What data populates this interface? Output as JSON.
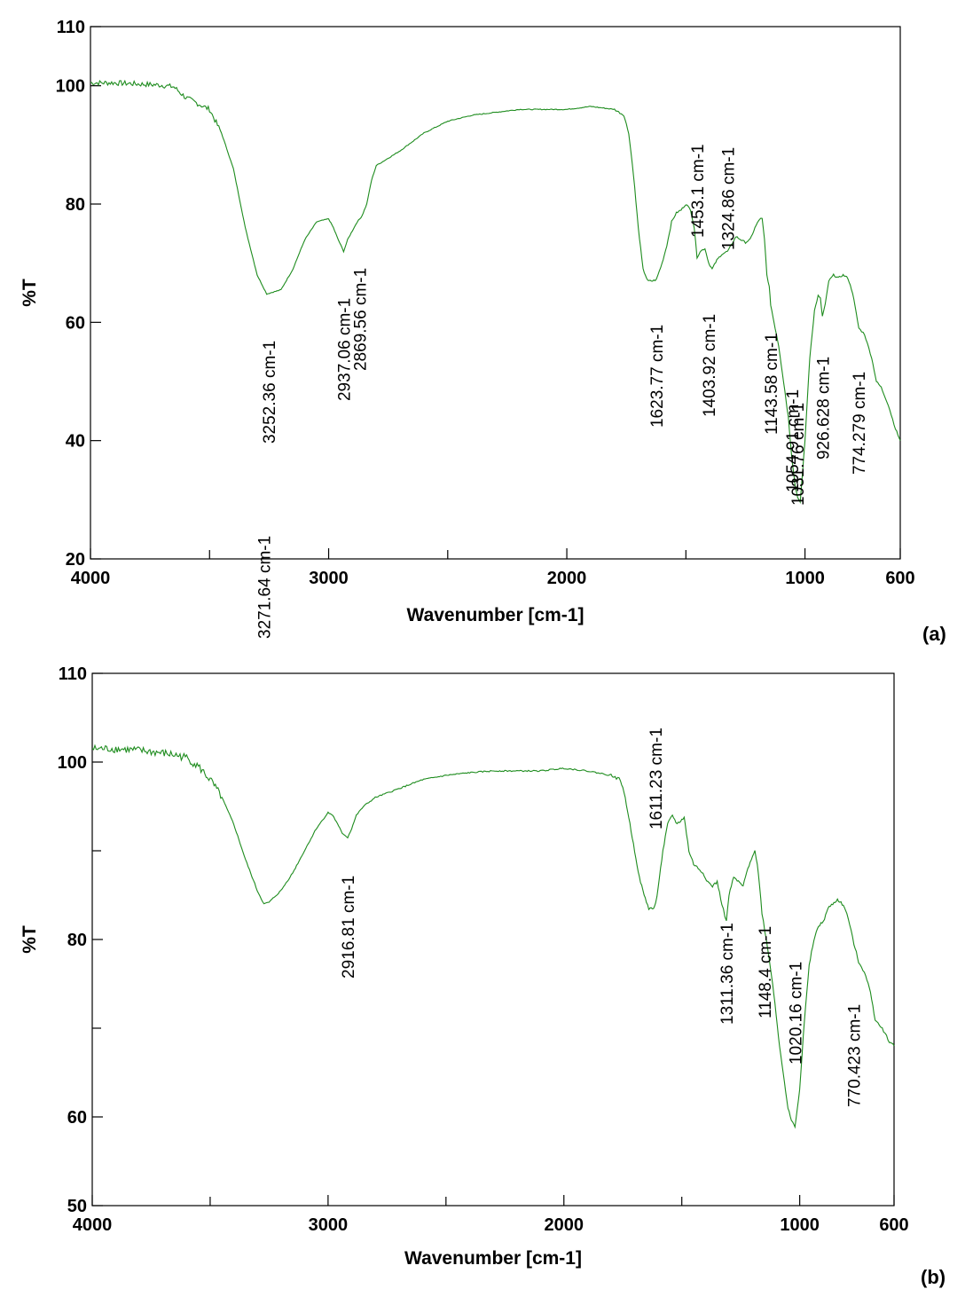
{
  "chart_data": [
    {
      "type": "line",
      "panel_label": "(a)",
      "xlabel": "Wavenumber [cm-1]",
      "ylabel": "%T",
      "xlim": [
        4000,
        600
      ],
      "ylim": [
        20,
        110
      ],
      "x_ticks": [
        4000,
        3000,
        2000,
        1000,
        600
      ],
      "y_ticks": [
        20,
        40,
        60,
        80,
        100,
        110
      ],
      "x_minor_ticks": [
        3500,
        2500,
        1500
      ],
      "y_minor_ticks": [],
      "grid": false,
      "line_color": "#1e8c1e",
      "series": [
        {
          "x": [
            4000,
            3900,
            3800,
            3700,
            3650,
            3600,
            3550,
            3500,
            3450,
            3400,
            3350,
            3300,
            3260,
            3200,
            3150,
            3100,
            3050,
            3000,
            2980,
            2960,
            2937,
            2920,
            2900,
            2880,
            2869,
            2860,
            2840,
            2820,
            2800,
            2700,
            2600,
            2500,
            2400,
            2300,
            2200,
            2100,
            2000,
            1900,
            1800,
            1760,
            1740,
            1720,
            1700,
            1680,
            1660,
            1640,
            1624,
            1600,
            1580,
            1560,
            1540,
            1520,
            1500,
            1480,
            1465,
            1453,
            1440,
            1420,
            1404,
            1390,
            1370,
            1350,
            1325,
            1310,
            1290,
            1270,
            1250,
            1230,
            1210,
            1190,
            1180,
            1170,
            1160,
            1150,
            1144,
            1130,
            1110,
            1090,
            1070,
            1055,
            1040,
            1031,
            1020,
            1000,
            980,
            960,
            945,
            935,
            927,
            915,
            900,
            880,
            860,
            840,
            820,
            800,
            774,
            750,
            720,
            700,
            680,
            650,
            620,
            600
          ],
          "y": [
            100.5,
            100.5,
            100.3,
            100.1,
            99.8,
            98.0,
            97.0,
            96.0,
            92.0,
            86.0,
            76.0,
            68.0,
            64.8,
            65.5,
            69.0,
            74.0,
            77.0,
            77.5,
            76.0,
            74.0,
            72.0,
            74.0,
            75.5,
            77.0,
            77.5,
            78.0,
            80.0,
            84.0,
            86.5,
            89.0,
            92.0,
            94.0,
            95.0,
            95.5,
            96.0,
            96.0,
            96.0,
            96.5,
            96.0,
            95.0,
            92.0,
            85.0,
            76.0,
            69.0,
            67.0,
            67.0,
            67.2,
            70.0,
            73.0,
            77.0,
            78.5,
            79.0,
            80.0,
            79.0,
            76.0,
            71.0,
            72.0,
            72.5,
            70.0,
            69.0,
            70.5,
            71.5,
            72.0,
            73.0,
            74.5,
            74.0,
            73.5,
            74.0,
            76.0,
            77.5,
            77.5,
            74.0,
            68.0,
            66.0,
            63.0,
            60.0,
            56.0,
            50.0,
            44.0,
            37.0,
            32.0,
            30.5,
            29.5,
            40.0,
            54.0,
            62.0,
            64.5,
            64.0,
            61.0,
            63.0,
            67.0,
            68.0,
            67.5,
            68.0,
            67.5,
            65.0,
            59.0,
            58.0,
            54.0,
            50.0,
            49.0,
            46.0,
            42.0,
            40.0
          ]
        }
      ],
      "annotations": [
        {
          "x": 3252.36,
          "label": "3252.36 cm-1"
        },
        {
          "x": 2937.06,
          "label": "2937.06 cm-1"
        },
        {
          "x": 2869.56,
          "label": "2869.56 cm-1"
        },
        {
          "x": 1623.77,
          "label": "1623.77 cm-1"
        },
        {
          "x": 1453.1,
          "label": "1453.1 cm-1"
        },
        {
          "x": 1403.92,
          "label": "1403.92 cm-1"
        },
        {
          "x": 1324.86,
          "label": "1324.86 cm-1"
        },
        {
          "x": 1143.58,
          "label": "1143.58 cm-1"
        },
        {
          "x": 1054.91,
          "label": "1054.91 cm-1"
        },
        {
          "x": 1031.76,
          "label": "1031.76 cm-1"
        },
        {
          "x": 926.628,
          "label": "926.628 cm-1"
        },
        {
          "x": 774.279,
          "label": "774.279 cm-1"
        }
      ]
    },
    {
      "type": "line",
      "panel_label": "(b)",
      "xlabel": "Wavenumber [cm-1]",
      "ylabel": "%T",
      "xlim": [
        4000,
        600
      ],
      "ylim": [
        50,
        110
      ],
      "x_ticks": [
        4000,
        3000,
        2000,
        1000,
        600
      ],
      "y_ticks": [
        50,
        60,
        80,
        100,
        110
      ],
      "x_minor_ticks": [
        3500,
        2500,
        1500
      ],
      "y_minor_ticks": [
        70,
        90
      ],
      "grid": false,
      "line_color": "#1e8c1e",
      "series": [
        {
          "x": [
            4000,
            3900,
            3800,
            3700,
            3650,
            3600,
            3550,
            3500,
            3450,
            3400,
            3350,
            3300,
            3272,
            3250,
            3200,
            3150,
            3100,
            3050,
            3000,
            2980,
            2960,
            2940,
            2917,
            2900,
            2880,
            2850,
            2800,
            2700,
            2600,
            2500,
            2400,
            2300,
            2200,
            2100,
            2000,
            1900,
            1800,
            1760,
            1740,
            1720,
            1700,
            1680,
            1660,
            1640,
            1620,
            1611,
            1600,
            1580,
            1560,
            1540,
            1520,
            1500,
            1490,
            1470,
            1450,
            1430,
            1410,
            1390,
            1370,
            1350,
            1330,
            1311,
            1300,
            1280,
            1260,
            1240,
            1220,
            1200,
            1190,
            1180,
            1170,
            1160,
            1148,
            1130,
            1110,
            1090,
            1070,
            1050,
            1035,
            1020,
            1000,
            980,
            960,
            940,
            920,
            900,
            880,
            860,
            840,
            820,
            800,
            770,
            750,
            720,
            700,
            680,
            650,
            620,
            600
          ],
          "y": [
            101.5,
            101.5,
            101.3,
            101.0,
            100.8,
            100.5,
            99.5,
            98.0,
            96.0,
            93.0,
            89.0,
            85.5,
            84.0,
            84.2,
            85.5,
            87.5,
            90.0,
            92.5,
            94.3,
            94.0,
            93.0,
            92.0,
            91.5,
            92.5,
            94.0,
            95.0,
            96.0,
            97.0,
            98.0,
            98.5,
            98.8,
            99.0,
            99.0,
            99.0,
            99.3,
            99.0,
            98.5,
            98.0,
            96.0,
            93.0,
            90.0,
            87.0,
            85.0,
            83.5,
            83.5,
            84.0,
            86.0,
            90.0,
            93.0,
            94.0,
            93.0,
            93.5,
            93.8,
            90.0,
            88.5,
            88.0,
            87.5,
            86.5,
            86.0,
            86.5,
            84.0,
            82.0,
            85.0,
            87.0,
            86.5,
            86.0,
            88.0,
            89.5,
            90.0,
            88.5,
            86.0,
            83.0,
            81.0,
            78.0,
            74.0,
            69.0,
            65.0,
            61.0,
            59.5,
            59.0,
            63.0,
            71.0,
            77.0,
            80.0,
            81.5,
            82.0,
            83.5,
            84.0,
            84.5,
            84.0,
            83.0,
            79.5,
            77.5,
            76.0,
            74.0,
            71.0,
            70.0,
            68.5,
            68.0
          ]
        }
      ],
      "annotations": [
        {
          "x": 3271.64,
          "label": "3271.64 cm-1"
        },
        {
          "x": 2916.81,
          "label": "2916.81 cm-1"
        },
        {
          "x": 1611.23,
          "label": "1611.23 cm-1"
        },
        {
          "x": 1311.36,
          "label": "1311.36 cm-1"
        },
        {
          "x": 1148.4,
          "label": "1148.4 cm-1"
        },
        {
          "x": 1020.16,
          "label": "1020.16 cm-1"
        },
        {
          "x": 770.423,
          "label": "770.423 cm-1"
        }
      ]
    }
  ]
}
